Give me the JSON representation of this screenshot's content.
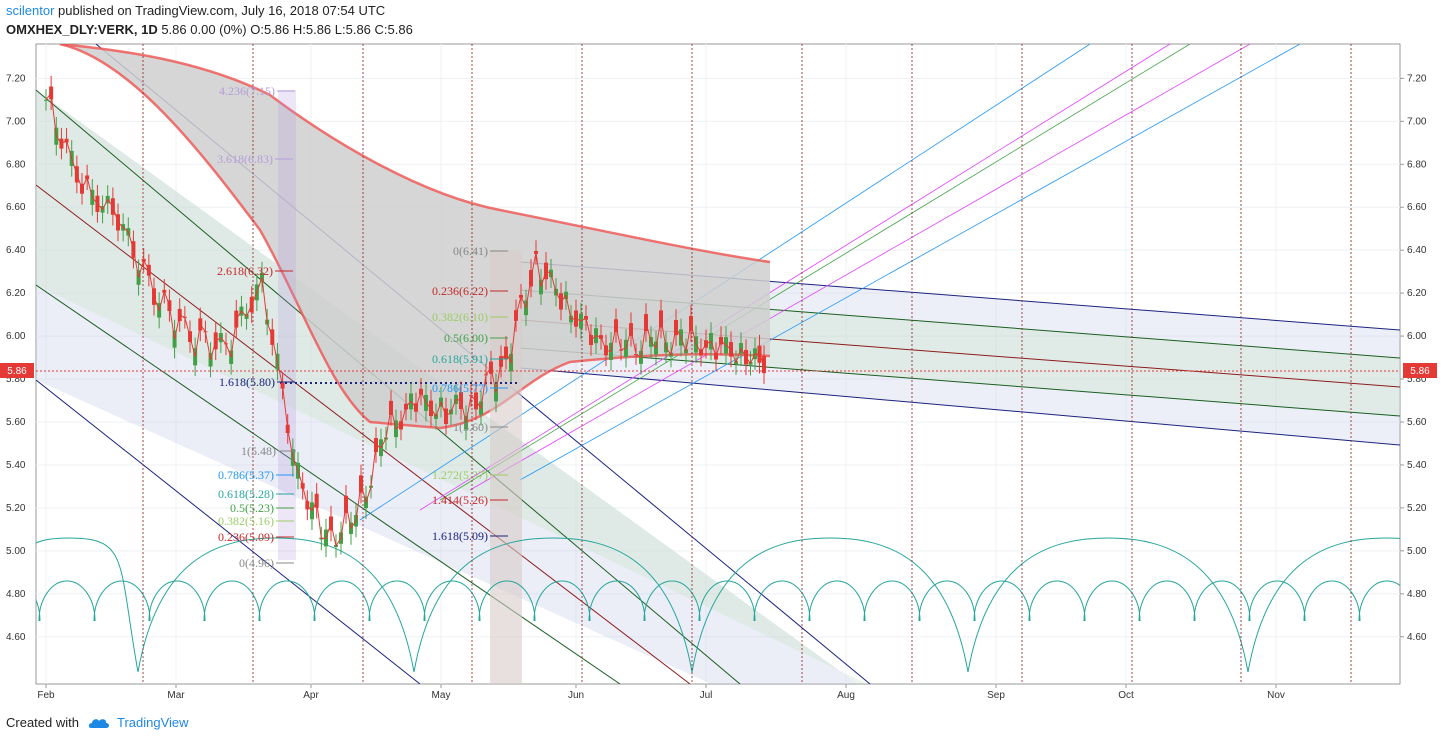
{
  "header": {
    "author": "scilentor",
    "published_text": "published on TradingView.com, July 16, 2018 07:54 UTC",
    "symbol": "OMXHEX_DLY:VERK, 1D",
    "quote": "5.86 0.00 (0%) O:5.86 H:5.86 L:5.86 C:5.86"
  },
  "footer": {
    "created_with": "Created with",
    "brand": "TradingView"
  },
  "price_badge": {
    "left": "5.86",
    "right": "5.86"
  },
  "chart_data": {
    "type": "candlestick",
    "symbol": "OMXHEX_DLY:VERK",
    "timeframe": "1D",
    "x_tick_labels": [
      "Feb",
      "Mar",
      "Apr",
      "May",
      "Jun",
      "Jul",
      "Aug",
      "Sep",
      "Oct",
      "Nov"
    ],
    "y_tick_labels": [
      "4.60",
      "4.80",
      "5.00",
      "5.20",
      "5.40",
      "5.60",
      "5.80",
      "6.00",
      "6.20",
      "6.40",
      "6.60",
      "6.80",
      "7.00",
      "7.20"
    ],
    "ylim": [
      4.38,
      7.36
    ],
    "last_price": 5.86,
    "close_series": {
      "dates": [
        "2018-02-01",
        "2018-02-08",
        "2018-02-15",
        "2018-02-22",
        "2018-03-01",
        "2018-03-08",
        "2018-03-15",
        "2018-03-22",
        "2018-03-29",
        "2018-04-05",
        "2018-04-12",
        "2018-04-19",
        "2018-04-26",
        "2018-05-03",
        "2018-05-10",
        "2018-05-17",
        "2018-05-24",
        "2018-05-31",
        "2018-06-07",
        "2018-06-14",
        "2018-06-21",
        "2018-06-28",
        "2018-07-05",
        "2018-07-12",
        "2018-07-16"
      ],
      "values": [
        7.1,
        6.7,
        6.55,
        6.2,
        6.0,
        5.95,
        6.25,
        5.35,
        5.05,
        5.15,
        5.55,
        5.7,
        5.65,
        5.7,
        5.9,
        6.35,
        6.15,
        5.98,
        5.95,
        5.98,
        5.98,
        5.95,
        5.92,
        5.85,
        5.86
      ]
    },
    "fibonacci_labels": [
      {
        "text": "4.236(7.15)",
        "color": "#b39ddb"
      },
      {
        "text": "3.618(6.83)",
        "color": "#b39ddb"
      },
      {
        "text": "2.618(6.32)",
        "color": "#c62828"
      },
      {
        "text": "1.618(5.80)",
        "color": "#1a237e"
      },
      {
        "text": "1(5.48)",
        "color": "#888888"
      },
      {
        "text": "0.786(5.37)",
        "color": "#2196f3"
      },
      {
        "text": "0.618(5.28)",
        "color": "#26a69a"
      },
      {
        "text": "0.5(5.23)",
        "color": "#43a047"
      },
      {
        "text": "0.382(5.16)",
        "color": "#9ccc65"
      },
      {
        "text": "0.236(5.09)",
        "color": "#c62828"
      },
      {
        "text": "0(4.96)",
        "color": "#888888"
      },
      {
        "text": "0(6.41)",
        "color": "#888888"
      },
      {
        "text": "0.236(6.22)",
        "color": "#c62828"
      },
      {
        "text": "0.382(6.10)",
        "color": "#9ccc65"
      },
      {
        "text": "0.5(6.00)",
        "color": "#43a047"
      },
      {
        "text": "0.618(5.91)",
        "color": "#26a69a"
      },
      {
        "text": "0.786(5.77)",
        "color": "#2196f3"
      },
      {
        "text": "1(5.60)",
        "color": "#888888"
      },
      {
        "text": "1.272(5.37)",
        "color": "#9ccc65"
      },
      {
        "text": "1.414(5.26)",
        "color": "#c62828"
      },
      {
        "text": "1.618(5.09)",
        "color": "#1a237e"
      }
    ],
    "colors": {
      "down": "#e53935",
      "up": "#43a047",
      "price_line": "#e53935",
      "cloud": "#cccccc"
    }
  }
}
